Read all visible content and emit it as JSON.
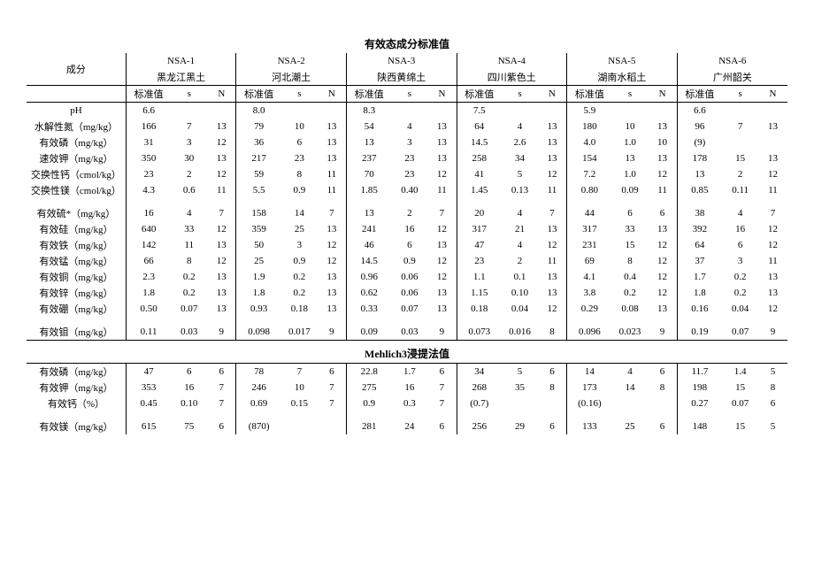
{
  "title_main": "有效态成分标准值",
  "title_section2": "Mehlich3浸提法值",
  "header": {
    "comp": "成分",
    "std": "标准值",
    "s": "s",
    "n": "N"
  },
  "groups": [
    {
      "code": "NSA-1",
      "region": "黑龙江黑土"
    },
    {
      "code": "NSA-2",
      "region": "河北潮土"
    },
    {
      "code": "NSA-3",
      "region": "陕西黄绵土"
    },
    {
      "code": "NSA-4",
      "region": "四川紫色土"
    },
    {
      "code": "NSA-5",
      "region": "湖南水稻土"
    },
    {
      "code": "NSA-6",
      "region": "广州韶关"
    }
  ],
  "rows1": [
    {
      "label": "pH",
      "v": [
        [
          "6.6",
          "",
          ""
        ],
        [
          "8.0",
          "",
          ""
        ],
        [
          "8.3",
          "",
          ""
        ],
        [
          "7.5",
          "",
          ""
        ],
        [
          "5.9",
          "",
          ""
        ],
        [
          "6.6",
          "",
          ""
        ]
      ]
    },
    {
      "label": "水解性氮（mg/kg）",
      "v": [
        [
          "166",
          "7",
          "13"
        ],
        [
          "79",
          "10",
          "13"
        ],
        [
          "54",
          "4",
          "13"
        ],
        [
          "64",
          "4",
          "13"
        ],
        [
          "180",
          "10",
          "13"
        ],
        [
          "96",
          "7",
          "13"
        ]
      ]
    },
    {
      "label": "有效磷（mg/kg）",
      "v": [
        [
          "31",
          "3",
          "12"
        ],
        [
          "36",
          "6",
          "13"
        ],
        [
          "13",
          "3",
          "13"
        ],
        [
          "14.5",
          "2.6",
          "13"
        ],
        [
          "4.0",
          "1.0",
          "10"
        ],
        [
          "(9)",
          "",
          ""
        ]
      ]
    },
    {
      "label": "速效钾（mg/kg）",
      "v": [
        [
          "350",
          "30",
          "13"
        ],
        [
          "217",
          "23",
          "13"
        ],
        [
          "237",
          "23",
          "13"
        ],
        [
          "258",
          "34",
          "13"
        ],
        [
          "154",
          "13",
          "13"
        ],
        [
          "178",
          "15",
          "13"
        ]
      ]
    },
    {
      "label": "交换性钙（cmol/kg）",
      "v": [
        [
          "23",
          "2",
          "12"
        ],
        [
          "59",
          "8",
          "11"
        ],
        [
          "70",
          "23",
          "12"
        ],
        [
          "41",
          "5",
          "12"
        ],
        [
          "7.2",
          "1.0",
          "12"
        ],
        [
          "13",
          "2",
          "12"
        ]
      ]
    },
    {
      "label": "交换性镁（cmol/kg）",
      "v": [
        [
          "4.3",
          "0.6",
          "11"
        ],
        [
          "5.5",
          "0.9",
          "11"
        ],
        [
          "1.85",
          "0.40",
          "11"
        ],
        [
          "1.45",
          "0.13",
          "11"
        ],
        [
          "0.80",
          "0.09",
          "11"
        ],
        [
          "0.85",
          "0.11",
          "11"
        ]
      ]
    }
  ],
  "rows1b": [
    {
      "label": "有效硫*（mg/kg）",
      "v": [
        [
          "16",
          "4",
          "7"
        ],
        [
          "158",
          "14",
          "7"
        ],
        [
          "13",
          "2",
          "7"
        ],
        [
          "20",
          "4",
          "7"
        ],
        [
          "44",
          "6",
          "6"
        ],
        [
          "38",
          "4",
          "7"
        ]
      ]
    },
    {
      "label": "有效硅（mg/kg）",
      "v": [
        [
          "640",
          "33",
          "12"
        ],
        [
          "359",
          "25",
          "13"
        ],
        [
          "241",
          "16",
          "12"
        ],
        [
          "317",
          "21",
          "13"
        ],
        [
          "317",
          "33",
          "13"
        ],
        [
          "392",
          "16",
          "12"
        ]
      ]
    },
    {
      "label": "有效铁（mg/kg）",
      "v": [
        [
          "142",
          "11",
          "13"
        ],
        [
          "50",
          "3",
          "12"
        ],
        [
          "46",
          "6",
          "13"
        ],
        [
          "47",
          "4",
          "12"
        ],
        [
          "231",
          "15",
          "12"
        ],
        [
          "64",
          "6",
          "12"
        ]
      ]
    },
    {
      "label": "有效锰（mg/kg）",
      "v": [
        [
          "66",
          "8",
          "12"
        ],
        [
          "25",
          "0.9",
          "12"
        ],
        [
          "14.5",
          "0.9",
          "12"
        ],
        [
          "23",
          "2",
          "11"
        ],
        [
          "69",
          "8",
          "12"
        ],
        [
          "37",
          "3",
          "11"
        ]
      ]
    },
    {
      "label": "有效铜（mg/kg）",
      "v": [
        [
          "2.3",
          "0.2",
          "13"
        ],
        [
          "1.9",
          "0.2",
          "13"
        ],
        [
          "0.96",
          "0.06",
          "12"
        ],
        [
          "1.1",
          "0.1",
          "13"
        ],
        [
          "4.1",
          "0.4",
          "12"
        ],
        [
          "1.7",
          "0.2",
          "13"
        ]
      ]
    },
    {
      "label": "有效锌（mg/kg）",
      "v": [
        [
          "1.8",
          "0.2",
          "13"
        ],
        [
          "1.8",
          "0.2",
          "13"
        ],
        [
          "0.62",
          "0.06",
          "13"
        ],
        [
          "1.15",
          "0.10",
          "13"
        ],
        [
          "3.8",
          "0.2",
          "12"
        ],
        [
          "1.8",
          "0.2",
          "13"
        ]
      ]
    },
    {
      "label": "有效硼（mg/kg）",
      "v": [
        [
          "0.50",
          "0.07",
          "13"
        ],
        [
          "0.93",
          "0.18",
          "13"
        ],
        [
          "0.33",
          "0.07",
          "13"
        ],
        [
          "0.18",
          "0.04",
          "12"
        ],
        [
          "0.29",
          "0.08",
          "13"
        ],
        [
          "0.16",
          "0.04",
          "12"
        ]
      ]
    }
  ],
  "rows1c": [
    {
      "label": "有效钼（mg/kg）",
      "v": [
        [
          "0.11",
          "0.03",
          "9"
        ],
        [
          "0.098",
          "0.017",
          "9"
        ],
        [
          "0.09",
          "0.03",
          "9"
        ],
        [
          "0.073",
          "0.016",
          "8"
        ],
        [
          "0.096",
          "0.023",
          "9"
        ],
        [
          "0.19",
          "0.07",
          "9"
        ]
      ]
    }
  ],
  "rows2": [
    {
      "label": "有效磷（mg/kg）",
      "v": [
        [
          "47",
          "6",
          "6"
        ],
        [
          "78",
          "7",
          "6"
        ],
        [
          "22.8",
          "1.7",
          "6"
        ],
        [
          "34",
          "5",
          "6"
        ],
        [
          "14",
          "4",
          "6"
        ],
        [
          "11.7",
          "1.4",
          "5"
        ]
      ]
    },
    {
      "label": "有效钾（mg/kg）",
      "v": [
        [
          "353",
          "16",
          "7"
        ],
        [
          "246",
          "10",
          "7"
        ],
        [
          "275",
          "16",
          "7"
        ],
        [
          "268",
          "35",
          "8"
        ],
        [
          "173",
          "14",
          "8"
        ],
        [
          "198",
          "15",
          "8"
        ]
      ]
    },
    {
      "label": "有效钙（%）",
      "v": [
        [
          "0.45",
          "0.10",
          "7"
        ],
        [
          "0.69",
          "0.15",
          "7"
        ],
        [
          "0.9",
          "0.3",
          "7"
        ],
        [
          "(0.7)",
          "",
          ""
        ],
        [
          "(0.16)",
          "",
          ""
        ],
        [
          "0.27",
          "0.07",
          "6"
        ]
      ]
    }
  ],
  "rows2b": [
    {
      "label": "有效镁（mg/kg）",
      "v": [
        [
          "615",
          "75",
          "6"
        ],
        [
          "(870)",
          "",
          ""
        ],
        [
          "281",
          "24",
          "6"
        ],
        [
          "256",
          "29",
          "6"
        ],
        [
          "133",
          "25",
          "6"
        ],
        [
          "148",
          "15",
          "5"
        ]
      ]
    }
  ],
  "style": {
    "background_color": "#ffffff",
    "text_color": "#000000",
    "font_family": "SimSun",
    "font_size_body": 11,
    "font_size_title": 12,
    "border_color": "#000000"
  }
}
